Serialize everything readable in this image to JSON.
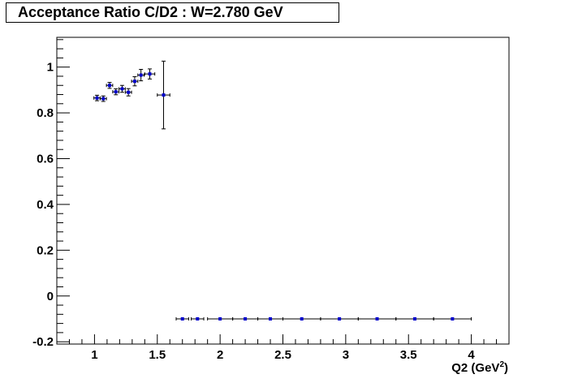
{
  "chart_data": {
    "type": "scatter",
    "title": "Acceptance Ratio C/D2 : W=2.780 GeV",
    "xlabel": "Q2 (GeV",
    "xlabel_sup": "2",
    "xlabel_close": ")",
    "ylabel": "",
    "xlim": [
      0.7,
      4.3
    ],
    "ylim": [
      -0.21,
      1.13
    ],
    "grid": false,
    "x_ticks": [
      1,
      1.5,
      2,
      2.5,
      3,
      3.5,
      4
    ],
    "x_tick_labels": [
      "1",
      "1.5",
      "2",
      "2.5",
      "3",
      "3.5",
      "4"
    ],
    "y_ticks": [
      -0.2,
      0,
      0.2,
      0.4,
      0.6,
      0.8,
      1
    ],
    "y_tick_labels": [
      "-0.2",
      "0",
      "0.2",
      "0.4",
      "0.6",
      "0.8",
      "1"
    ],
    "marker_color": "#0000cc",
    "series": [
      {
        "points": [
          {
            "x": 1.02,
            "y": 0.865,
            "xerr": 0.025,
            "yerr": 0.012
          },
          {
            "x": 1.07,
            "y": 0.862,
            "xerr": 0.025,
            "yerr": 0.012
          },
          {
            "x": 1.12,
            "y": 0.92,
            "xerr": 0.025,
            "yerr": 0.013
          },
          {
            "x": 1.17,
            "y": 0.892,
            "xerr": 0.025,
            "yerr": 0.013
          },
          {
            "x": 1.22,
            "y": 0.905,
            "xerr": 0.025,
            "yerr": 0.015
          },
          {
            "x": 1.27,
            "y": 0.89,
            "xerr": 0.025,
            "yerr": 0.016
          },
          {
            "x": 1.32,
            "y": 0.938,
            "xerr": 0.025,
            "yerr": 0.02
          },
          {
            "x": 1.37,
            "y": 0.965,
            "xerr": 0.025,
            "yerr": 0.025
          },
          {
            "x": 1.44,
            "y": 0.97,
            "xerr": 0.04,
            "yerr": 0.022
          },
          {
            "x": 1.55,
            "y": 0.878,
            "xerr": 0.05,
            "yerr": 0.148
          },
          {
            "x": 1.7,
            "y": -0.1,
            "xerr": 0.05,
            "yerr": 0
          },
          {
            "x": 1.82,
            "y": -0.1,
            "xerr": 0.05,
            "yerr": 0
          },
          {
            "x": 2.0,
            "y": -0.1,
            "xerr": 0.1,
            "yerr": 0
          },
          {
            "x": 2.2,
            "y": -0.1,
            "xerr": 0.1,
            "yerr": 0
          },
          {
            "x": 2.4,
            "y": -0.1,
            "xerr": 0.1,
            "yerr": 0
          },
          {
            "x": 2.65,
            "y": -0.1,
            "xerr": 0.15,
            "yerr": 0
          },
          {
            "x": 2.95,
            "y": -0.1,
            "xerr": 0.15,
            "yerr": 0
          },
          {
            "x": 3.25,
            "y": -0.1,
            "xerr": 0.15,
            "yerr": 0
          },
          {
            "x": 3.55,
            "y": -0.1,
            "xerr": 0.15,
            "yerr": 0
          },
          {
            "x": 3.85,
            "y": -0.1,
            "xerr": 0.15,
            "yerr": 0
          }
        ]
      }
    ]
  }
}
